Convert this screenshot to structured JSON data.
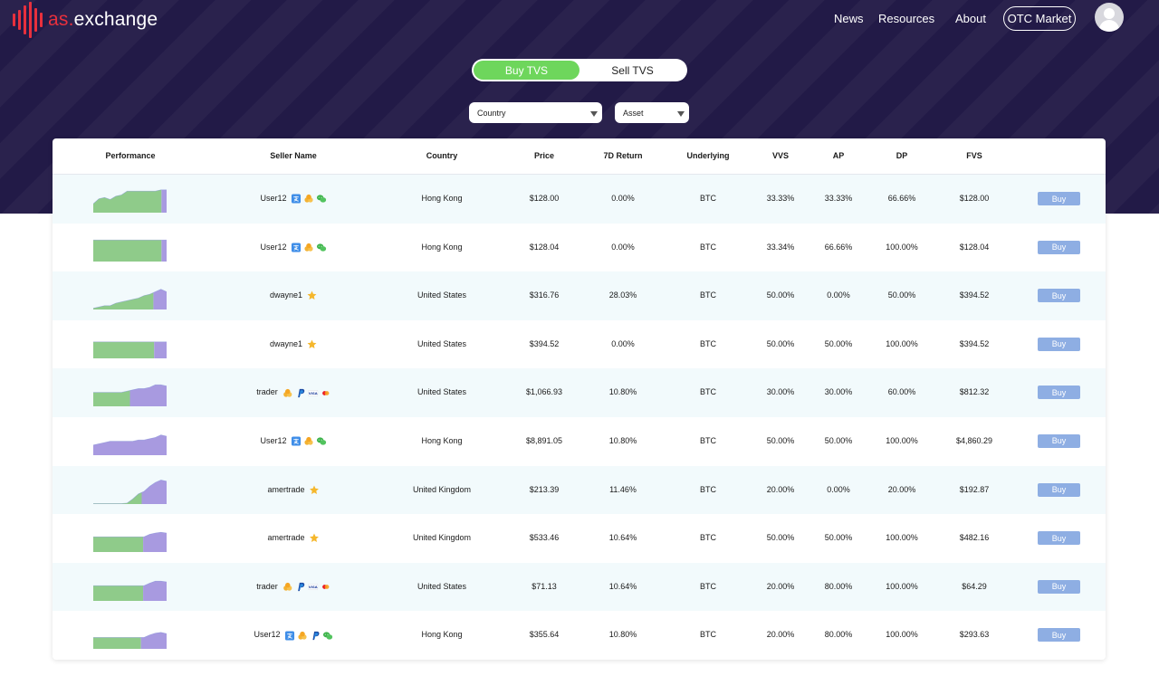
{
  "brand": {
    "prefix": "as.",
    "name": "exchange",
    "accent": "#e8303d"
  },
  "nav": {
    "news": "News",
    "resources": "Resources",
    "about": "About",
    "otc": "OTC Market"
  },
  "toggle": {
    "buy": "Buy TVS",
    "sell": "Sell TVS",
    "active": "buy"
  },
  "filters": {
    "country": "Country",
    "asset": "Asset"
  },
  "colors": {
    "hero_bg": "#221a47",
    "green": "#6ed65c",
    "spark_green": "#8fcb8a",
    "spark_purple": "#a89ae0",
    "buy_btn": "#8eaee3"
  },
  "columns": [
    "Performance",
    "Seller Name",
    "Country",
    "Price",
    "7D Return",
    "Underlying",
    "VVS",
    "AP",
    "DP",
    "FVS"
  ],
  "rows": [
    {
      "seller": "User12",
      "badges": [
        "alipay-icon",
        "coins-icon",
        "wechat-icon"
      ],
      "country": "Hong Kong",
      "price": "$128.00",
      "return7d": "0.00%",
      "underlying": "BTC",
      "vvs": "33.33%",
      "ap": "33.33%",
      "dp": "66.66%",
      "fvs": "$128.00",
      "buy": "Buy",
      "spark": {
        "green_share": 0.93,
        "points": [
          0.35,
          0.55,
          0.6,
          0.52,
          0.65,
          0.7,
          0.85,
          0.85,
          0.85,
          0.85,
          0.85,
          0.85,
          0.9,
          0.9
        ]
      }
    },
    {
      "seller": "User12",
      "badges": [
        "alipay-icon",
        "coins-icon",
        "wechat-icon"
      ],
      "country": "Hong Kong",
      "price": "$128.04",
      "return7d": "0.00%",
      "underlying": "BTC",
      "vvs": "33.34%",
      "ap": "66.66%",
      "dp": "100.00%",
      "fvs": "$128.04",
      "buy": "Buy",
      "spark": {
        "green_share": 0.93,
        "points": [
          0.85,
          0.85,
          0.85,
          0.85,
          0.85,
          0.85,
          0.85,
          0.85,
          0.85,
          0.85,
          0.85,
          0.85,
          0.85,
          0.85
        ]
      }
    },
    {
      "seller": "dwayne1",
      "badges": [
        "star-icon"
      ],
      "country": "United States",
      "price": "$316.76",
      "return7d": "28.03%",
      "underlying": "BTC",
      "vvs": "50.00%",
      "ap": "0.00%",
      "dp": "50.00%",
      "fvs": "$394.52",
      "buy": "Buy",
      "spark": {
        "green_share": 0.82,
        "points": [
          0.05,
          0.1,
          0.15,
          0.15,
          0.25,
          0.3,
          0.35,
          0.4,
          0.45,
          0.55,
          0.6,
          0.7,
          0.8,
          0.7
        ]
      }
    },
    {
      "seller": "dwayne1",
      "badges": [
        "star-icon"
      ],
      "country": "United States",
      "price": "$394.52",
      "return7d": "0.00%",
      "underlying": "BTC",
      "vvs": "50.00%",
      "ap": "50.00%",
      "dp": "100.00%",
      "fvs": "$394.52",
      "buy": "Buy",
      "spark": {
        "green_share": 0.83,
        "points": [
          0.65,
          0.65,
          0.65,
          0.65,
          0.65,
          0.65,
          0.65,
          0.65,
          0.65,
          0.65,
          0.65,
          0.65,
          0.65,
          0.65
        ]
      }
    },
    {
      "seller": "trader",
      "badges": [
        "coins-icon",
        "paypal-icon",
        "visa-icon",
        "mastercard-icon"
      ],
      "country": "United States",
      "price": "$1,066.93",
      "return7d": "10.80%",
      "underlying": "BTC",
      "vvs": "30.00%",
      "ap": "30.00%",
      "dp": "60.00%",
      "fvs": "$812.32",
      "buy": "Buy",
      "spark": {
        "green_share": 0.5,
        "points": [
          0.55,
          0.55,
          0.55,
          0.55,
          0.55,
          0.55,
          0.6,
          0.65,
          0.7,
          0.7,
          0.75,
          0.85,
          0.85,
          0.8
        ]
      }
    },
    {
      "seller": "User12",
      "badges": [
        "alipay-icon",
        "coins-icon",
        "wechat-icon"
      ],
      "country": "Hong Kong",
      "price": "$8,891.05",
      "return7d": "10.80%",
      "underlying": "BTC",
      "vvs": "50.00%",
      "ap": "50.00%",
      "dp": "100.00%",
      "fvs": "$4,860.29",
      "buy": "Buy",
      "spark": {
        "green_share": 0.0,
        "points": [
          0.4,
          0.45,
          0.5,
          0.55,
          0.55,
          0.55,
          0.55,
          0.55,
          0.6,
          0.6,
          0.65,
          0.7,
          0.8,
          0.75
        ]
      }
    },
    {
      "seller": "amertrade",
      "badges": [
        "star-icon"
      ],
      "country": "United Kingdom",
      "price": "$213.39",
      "return7d": "11.46%",
      "underlying": "BTC",
      "vvs": "20.00%",
      "ap": "0.00%",
      "dp": "20.00%",
      "fvs": "$192.87",
      "buy": "Buy",
      "spark": {
        "green_share": 0.66,
        "points": [
          0.02,
          0.02,
          0.02,
          0.02,
          0.02,
          0.02,
          0.04,
          0.2,
          0.4,
          0.5,
          0.7,
          0.85,
          0.95,
          0.9
        ]
      }
    },
    {
      "seller": "amertrade",
      "badges": [
        "star-icon"
      ],
      "country": "United Kingdom",
      "price": "$533.46",
      "return7d": "10.64%",
      "underlying": "BTC",
      "vvs": "50.00%",
      "ap": "50.00%",
      "dp": "100.00%",
      "fvs": "$482.16",
      "buy": "Buy",
      "spark": {
        "green_share": 0.68,
        "points": [
          0.6,
          0.6,
          0.6,
          0.6,
          0.6,
          0.6,
          0.6,
          0.6,
          0.6,
          0.6,
          0.7,
          0.75,
          0.78,
          0.75
        ]
      }
    },
    {
      "seller": "trader",
      "badges": [
        "coins-icon",
        "paypal-icon",
        "visa-icon",
        "mastercard-icon"
      ],
      "country": "United States",
      "price": "$71.13",
      "return7d": "10.64%",
      "underlying": "BTC",
      "vvs": "20.00%",
      "ap": "80.00%",
      "dp": "100.00%",
      "fvs": "$64.29",
      "buy": "Buy",
      "spark": {
        "green_share": 0.68,
        "points": [
          0.6,
          0.6,
          0.6,
          0.6,
          0.6,
          0.6,
          0.6,
          0.6,
          0.6,
          0.6,
          0.7,
          0.78,
          0.78,
          0.75
        ]
      }
    },
    {
      "seller": "User12",
      "badges": [
        "alipay-icon",
        "coins-icon",
        "paypal-icon",
        "wechat-icon"
      ],
      "country": "Hong Kong",
      "price": "$355.64",
      "return7d": "10.80%",
      "underlying": "BTC",
      "vvs": "20.00%",
      "ap": "80.00%",
      "dp": "100.00%",
      "fvs": "$293.63",
      "buy": "Buy",
      "spark": {
        "green_share": 0.65,
        "points": [
          0.45,
          0.45,
          0.45,
          0.45,
          0.45,
          0.45,
          0.45,
          0.45,
          0.45,
          0.45,
          0.55,
          0.62,
          0.65,
          0.6
        ]
      }
    }
  ]
}
